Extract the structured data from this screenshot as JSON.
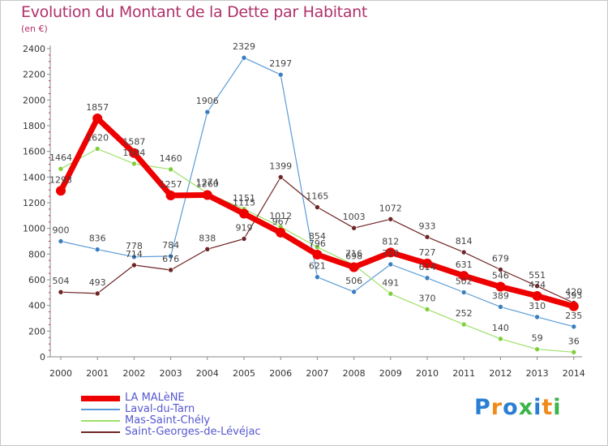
{
  "header": {
    "title": "Evolution du Montant de la Dette par Habitant",
    "subtitle": "(en €)"
  },
  "brand": {
    "text": "Proxiti",
    "colors": [
      "#2a7fd4",
      "#f08a1c",
      "#2a7fd4",
      "#39b54a",
      "#2a7fd4",
      "#f08a1c",
      "#39b54a"
    ]
  },
  "colors": {
    "title": "#b0306a",
    "legend_text": "#5557cf",
    "axis": "#888888",
    "label": "#333333"
  },
  "chart_data": {
    "type": "line",
    "title": "Evolution du Montant de la Dette par Habitant",
    "subtitle": "(en €)",
    "xlabel": "",
    "ylabel": "",
    "ylim": [
      0,
      2400
    ],
    "yticks": [
      0,
      200,
      400,
      600,
      800,
      1000,
      1200,
      1400,
      1600,
      1800,
      2000,
      2200,
      2400
    ],
    "categories": [
      "2000",
      "2001",
      "2002",
      "2003",
      "2004",
      "2005",
      "2006",
      "2007",
      "2008",
      "2009",
      "2010",
      "2011",
      "2012",
      "2013",
      "2014"
    ],
    "grid": false,
    "legend_position": "bottom-left",
    "series": [
      {
        "name": "LA MALèNE",
        "color": "#ee0000",
        "marker": "#ee0000",
        "width": 7,
        "radius": 6,
        "values": [
          1293,
          1857,
          1587,
          1257,
          1260,
          1115,
          967,
          796,
          698,
          812,
          727,
          631,
          546,
          474,
          393
        ]
      },
      {
        "name": "Laval-du-Tarn",
        "color": "#5b9bd5",
        "marker": "#3a7ec0",
        "width": 1.2,
        "radius": 3,
        "values": [
          900,
          836,
          778,
          784,
          1906,
          2329,
          2197,
          621,
          506,
          720,
          614,
          502,
          389,
          310,
          235
        ]
      },
      {
        "name": "Mas-Saint-Chély",
        "color": "#9ee06a",
        "marker": "#7fcf3c",
        "width": 1.2,
        "radius": 3,
        "values": [
          1464,
          1620,
          1504,
          1460,
          1274,
          1151,
          1012,
          854,
          716,
          491,
          370,
          252,
          140,
          59,
          36
        ]
      },
      {
        "name": "Saint-Georges-de-Lévéjac",
        "color": "#6e2424",
        "marker": "#6e2424",
        "width": 1.2,
        "radius": 3,
        "values": [
          504,
          493,
          714,
          676,
          838,
          919,
          1399,
          1165,
          1003,
          1072,
          933,
          814,
          679,
          551,
          420
        ]
      }
    ]
  }
}
